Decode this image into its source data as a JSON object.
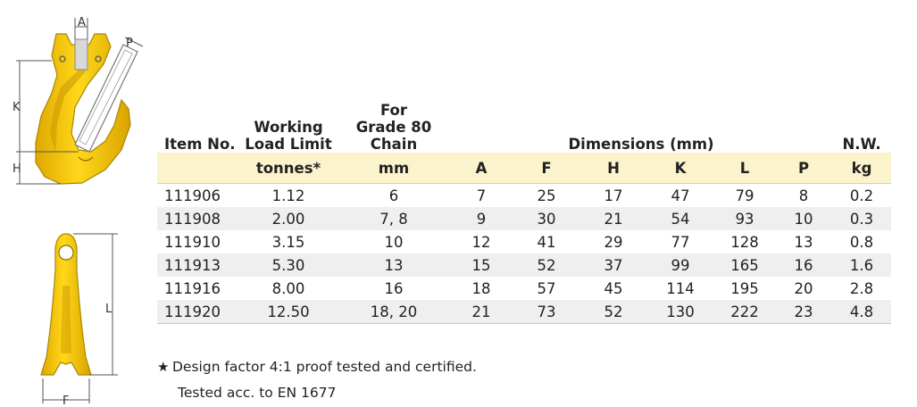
{
  "table": {
    "headers": {
      "item": "Item No.",
      "wll": [
        "Working",
        "Load Limit"
      ],
      "grade": [
        "For",
        "Grade 80",
        "Chain"
      ],
      "dimensions": "Dimensions (mm)",
      "nw": "N.W."
    },
    "units": [
      "tonnes*",
      "mm",
      "A",
      "F",
      "H",
      "K",
      "L",
      "P",
      "kg"
    ],
    "rows": [
      [
        "111906",
        "1.12",
        "6",
        "7",
        "25",
        "17",
        "47",
        "79",
        "8",
        "0.2"
      ],
      [
        "111908",
        "2.00",
        "7, 8",
        "9",
        "30",
        "21",
        "54",
        "93",
        "10",
        "0.3"
      ],
      [
        "111910",
        "3.15",
        "10",
        "12",
        "41",
        "29",
        "77",
        "128",
        "13",
        "0.8"
      ],
      [
        "111913",
        "5.30",
        "13",
        "15",
        "52",
        "37",
        "99",
        "165",
        "16",
        "1.6"
      ],
      [
        "111916",
        "8.00",
        "16",
        "18",
        "57",
        "45",
        "114",
        "195",
        "20",
        "2.8"
      ],
      [
        "111920",
        "12.50",
        "18, 20",
        "21",
        "73",
        "52",
        "130",
        "222",
        "23",
        "4.8"
      ]
    ]
  },
  "notes": {
    "star": "★",
    "design_factor": "Design factor 4:1 proof tested and certified.",
    "tested": "Tested acc. to EN 1677"
  },
  "diagram": {
    "labels": [
      "A",
      "P",
      "K",
      "H",
      "L",
      "F"
    ],
    "colors": {
      "fill": "#f5c800",
      "outline": "#a88600",
      "dim_line": "#555555"
    }
  }
}
